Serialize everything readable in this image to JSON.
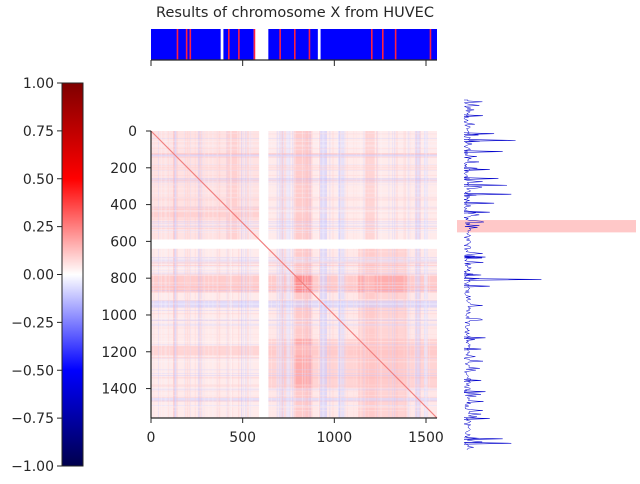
{
  "chart_data": {
    "type": "heatmap",
    "title": "Results of chromosome X from HUVEC",
    "matrix_axis": {
      "range": [
        0,
        1560
      ],
      "y_ticks": [
        0,
        200,
        400,
        600,
        800,
        1000,
        1200,
        1400
      ],
      "x_ticks": [
        0,
        500,
        1000,
        1500
      ]
    },
    "colorbar": {
      "range": [
        -1.0,
        1.0
      ],
      "ticks": [
        "1.00",
        "0.75",
        "0.50",
        "0.25",
        "0.00",
        "−0.25",
        "−0.50",
        "−0.75",
        "−1.00"
      ],
      "colormap": "seismic",
      "colors": {
        "low": "#00004c",
        "mid_low": "#0000ff",
        "zero": "#ffffff",
        "mid_high": "#ff0000",
        "high": "#7f0000"
      }
    },
    "track_top": {
      "ticks_bins": [
        0,
        500,
        1000,
        1500
      ],
      "gaps": [
        [
          380,
          395
        ],
        [
          560,
          640
        ],
        [
          910,
          925
        ]
      ],
      "red_marks": [
        140,
        190,
        210,
        420,
        475,
        560,
        700,
        780,
        860,
        1200,
        1260,
        1330,
        1520
      ],
      "colors": {
        "fill": "#0000ff",
        "mark": "#ff2040"
      }
    },
    "track_right": {
      "highlight_band_bins": [
        535,
        590
      ],
      "peaks": [
        {
          "bin": 70,
          "value": 0.22
        },
        {
          "bin": 150,
          "value": 0.35
        },
        {
          "bin": 180,
          "value": 0.6
        },
        {
          "bin": 230,
          "value": 0.45
        },
        {
          "bin": 310,
          "value": 0.3
        },
        {
          "bin": 350,
          "value": 0.4
        },
        {
          "bin": 380,
          "value": 0.5
        },
        {
          "bin": 420,
          "value": 0.55
        },
        {
          "bin": 460,
          "value": 0.35
        },
        {
          "bin": 500,
          "value": 0.3
        },
        {
          "bin": 700,
          "value": 0.25
        },
        {
          "bin": 780,
          "value": 0.2
        },
        {
          "bin": 800,
          "value": 0.9
        },
        {
          "bin": 830,
          "value": 0.3
        },
        {
          "bin": 1060,
          "value": 0.25
        },
        {
          "bin": 1110,
          "value": 0.2
        },
        {
          "bin": 1250,
          "value": 0.2
        },
        {
          "bin": 1300,
          "value": 0.25
        },
        {
          "bin": 1420,
          "value": 0.3
        },
        {
          "bin": 1510,
          "value": 0.45
        },
        {
          "bin": 1530,
          "value": 0.55
        }
      ],
      "colors": {
        "line": "#0000cc",
        "band": "#ffc8c8"
      }
    },
    "heatmap_style": {
      "diagonal_color": "#f08080",
      "gap_bins": [
        [
          590,
          640
        ]
      ],
      "blocks": [
        {
          "x": [
            0,
            1560
          ],
          "y": [
            0,
            590
          ],
          "v": 0.07
        },
        {
          "x": [
            0,
            590
          ],
          "y": [
            0,
            1560
          ],
          "v": 0.07
        },
        {
          "x": [
            640,
            1560
          ],
          "y": [
            640,
            1560
          ],
          "v": 0.08
        },
        {
          "x": [
            780,
            880
          ],
          "y": [
            0,
            1560
          ],
          "v": 0.15
        },
        {
          "x": [
            0,
            1560
          ],
          "y": [
            780,
            880
          ],
          "v": 0.15
        },
        {
          "x": [
            1130,
            1400
          ],
          "y": [
            640,
            1560
          ],
          "v": 0.12
        },
        {
          "x": [
            640,
            1560
          ],
          "y": [
            1130,
            1400
          ],
          "v": 0.12
        },
        {
          "x": [
            780,
            880
          ],
          "y": [
            780,
            880
          ],
          "v": 0.3
        },
        {
          "x": [
            780,
            880
          ],
          "y": [
            1130,
            1400
          ],
          "v": 0.2
        },
        {
          "x": [
            1130,
            1400
          ],
          "y": [
            780,
            880
          ],
          "v": 0.2
        },
        {
          "x": [
            1170,
            1220
          ],
          "y": [
            0,
            1560
          ],
          "v": 0.12
        },
        {
          "x": [
            0,
            1560
          ],
          "y": [
            1170,
            1220
          ],
          "v": 0.12
        },
        {
          "x": [
            410,
            470
          ],
          "y": [
            0,
            590
          ],
          "v": 0.12
        },
        {
          "x": [
            0,
            590
          ],
          "y": [
            410,
            470
          ],
          "v": 0.12
        }
      ],
      "blue_stripes": [
        {
          "x": [
            600,
            640
          ],
          "v": -0.06
        },
        {
          "x": [
            700,
            725
          ],
          "v": -0.08
        },
        {
          "x": [
            740,
            760
          ],
          "v": -0.06
        },
        {
          "x": [
            920,
            960
          ],
          "v": -0.1
        },
        {
          "x": [
            1020,
            1050
          ],
          "v": -0.07
        },
        {
          "x": [
            1440,
            1470
          ],
          "v": -0.08
        },
        {
          "x": [
            1490,
            1510
          ],
          "v": -0.06
        }
      ],
      "blue_rows": [
        {
          "y": [
            920,
            960
          ],
          "v": -0.1
        },
        {
          "y": [
            1450,
            1470
          ],
          "v": -0.08
        },
        {
          "y": [
            700,
            720
          ],
          "v": -0.06
        }
      ]
    }
  }
}
